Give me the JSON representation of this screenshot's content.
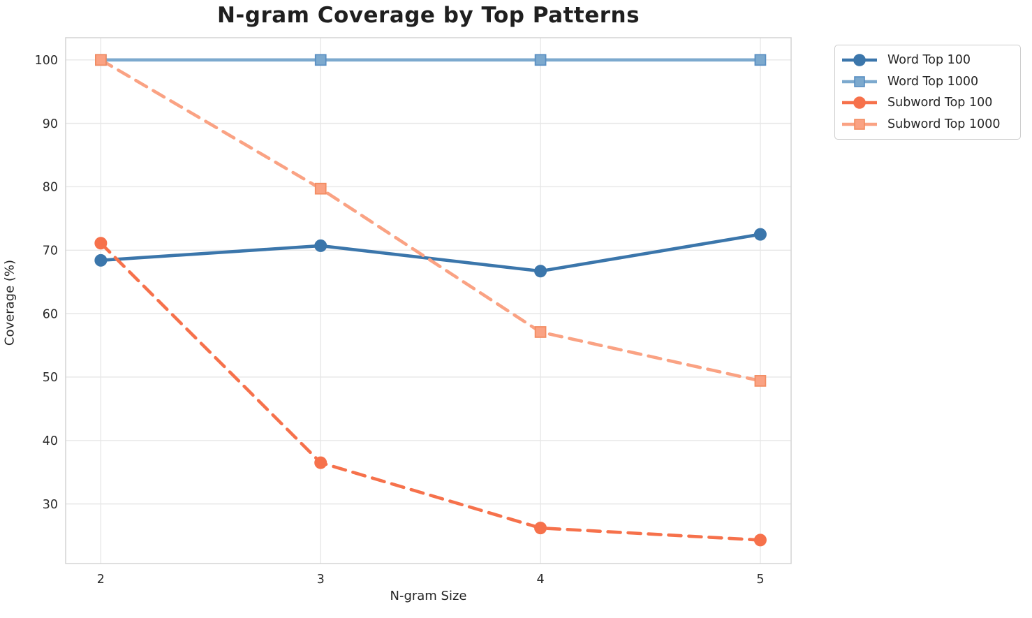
{
  "chart_data": {
    "type": "line",
    "title": "N-gram Coverage by Top Patterns",
    "xlabel": "N-gram Size",
    "ylabel": "Coverage (%)",
    "x": [
      2,
      3,
      4,
      5
    ],
    "xticks": [
      "2",
      "3",
      "4",
      "5"
    ],
    "yticks": [
      30,
      40,
      50,
      60,
      70,
      80,
      90,
      100
    ],
    "xlim": [
      1.84,
      5.14
    ],
    "ylim": [
      20.6,
      103.5
    ],
    "grid": true,
    "legend_position": "outside-upper-right",
    "series": [
      {
        "name": "Word Top 100",
        "values": [
          68.4,
          70.7,
          66.7,
          72.5
        ],
        "color": "#3B76AB",
        "edge": "#3B76AB",
        "marker": "circle",
        "line_style": "solid"
      },
      {
        "name": "Word Top 1000",
        "values": [
          100.0,
          100.0,
          100.0,
          100.0
        ],
        "color": "#7CA9CE",
        "edge": "#588EC2",
        "marker": "square",
        "line_style": "solid"
      },
      {
        "name": "Subword Top 100",
        "values": [
          71.1,
          36.5,
          26.2,
          24.3
        ],
        "color": "#F6714B",
        "edge": "#F6714B",
        "marker": "circle",
        "line_style": "dashed"
      },
      {
        "name": "Subword Top 1000",
        "values": [
          100.0,
          79.7,
          57.1,
          49.4
        ],
        "color": "#FAA283",
        "edge": "#F28B60",
        "marker": "square",
        "line_style": "dashed"
      }
    ]
  },
  "colors": {
    "background": "#ffffff",
    "grid": "#e7e7e7",
    "spine": "#d4d4d4",
    "text": "#262626",
    "tick_text": "#2a2a2a"
  }
}
